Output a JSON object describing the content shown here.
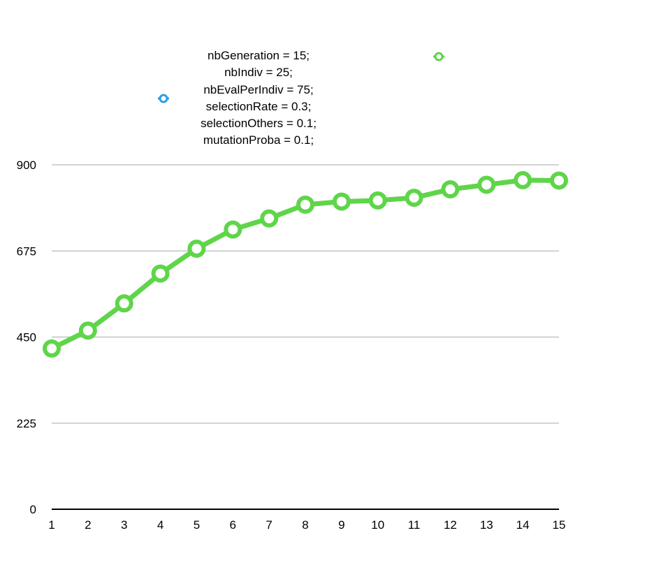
{
  "chart_data": {
    "type": "line",
    "x": [
      1,
      2,
      3,
      4,
      5,
      6,
      7,
      8,
      9,
      10,
      11,
      12,
      13,
      14,
      15
    ],
    "series": [
      {
        "color": "#5fd549",
        "values": [
          420,
          467,
          538,
          616,
          681,
          731,
          760,
          796,
          804,
          807,
          814,
          836,
          848,
          860,
          859
        ]
      }
    ],
    "legend": {
      "markers": [
        {
          "color": "#2a9de8"
        },
        {
          "color": "#5fd549"
        }
      ],
      "text_lines": [
        "nbGeneration = 15;",
        "nbIndiv = 25;",
        "nbEvalPerIndiv = 75;",
        "selectionRate = 0.3;",
        "selectionOthers = 0.1;",
        "mutationProba = 0.1;"
      ],
      "placement": "top-center"
    },
    "y_ticks": [
      0,
      225,
      450,
      675,
      900
    ],
    "x_ticks": [
      1,
      2,
      3,
      4,
      5,
      6,
      7,
      8,
      9,
      10,
      11,
      12,
      13,
      14,
      15
    ],
    "ylim": [
      0,
      900
    ],
    "grid": true,
    "title": "",
    "xlabel": "",
    "ylabel": ""
  }
}
